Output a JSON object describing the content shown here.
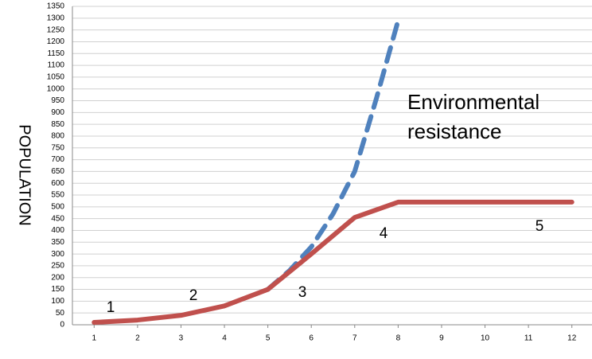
{
  "chart_data": {
    "type": "line",
    "y_label": "POPULATION",
    "annotations": [
      "1",
      "2",
      "3",
      "4",
      "5",
      "Environmental",
      "resistance"
    ],
    "xlim": [
      0.5,
      12.5
    ],
    "xticks": [
      1,
      2,
      3,
      4,
      5,
      6,
      7,
      8,
      9,
      10,
      11,
      12
    ],
    "ylim": [
      0,
      1350
    ],
    "yticks": [
      0,
      50,
      100,
      150,
      200,
      250,
      300,
      350,
      400,
      450,
      500,
      550,
      600,
      650,
      700,
      750,
      800,
      850,
      900,
      950,
      1000,
      1050,
      1100,
      1150,
      1200,
      1250,
      1300,
      1350
    ],
    "grid": true,
    "series": [
      {
        "color": "#4f81bd",
        "dashed": true,
        "x": [
          5,
          5.5,
          6,
          6.5,
          7,
          7.5,
          8
        ],
        "values": [
          150,
          230,
          330,
          470,
          650,
          960,
          1290
        ]
      },
      {
        "color": "#c0504d",
        "dashed": false,
        "x": [
          1,
          2,
          3,
          4,
          5,
          6,
          7,
          8,
          9,
          10,
          11,
          12
        ],
        "values": [
          10,
          20,
          40,
          80,
          150,
          300,
          455,
          520,
          520,
          520,
          520,
          520
        ]
      }
    ]
  }
}
